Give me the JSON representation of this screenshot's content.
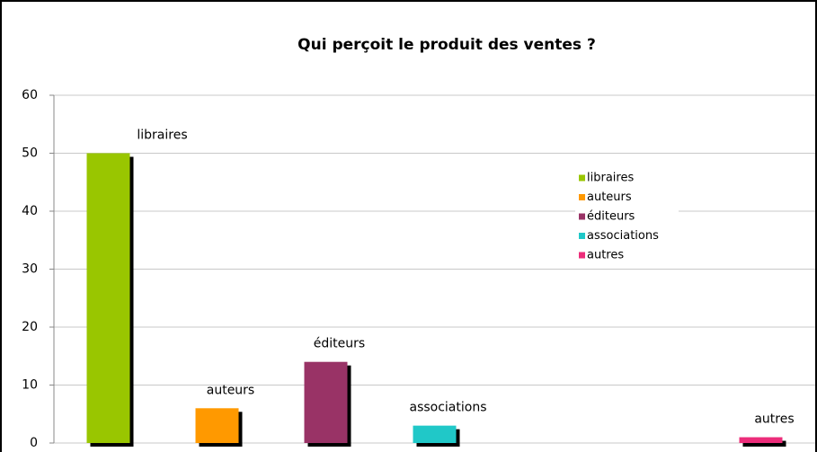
{
  "chart_data": {
    "type": "bar",
    "title": "Qui perçoit le produit des ventes ?",
    "categories": [
      "libraires",
      "auteurs",
      "éditeurs",
      "associations",
      null,
      null,
      "autres"
    ],
    "values": [
      50,
      6,
      14,
      3,
      null,
      null,
      1
    ],
    "colors": [
      "#99c600",
      "#ff9900",
      "#993366",
      "#20c8c8",
      null,
      null,
      "#ec2d7a"
    ],
    "ylim": [
      0,
      60
    ],
    "yticks": [
      0,
      10,
      20,
      30,
      40,
      50,
      60
    ],
    "grid": true,
    "legend": "right"
  }
}
